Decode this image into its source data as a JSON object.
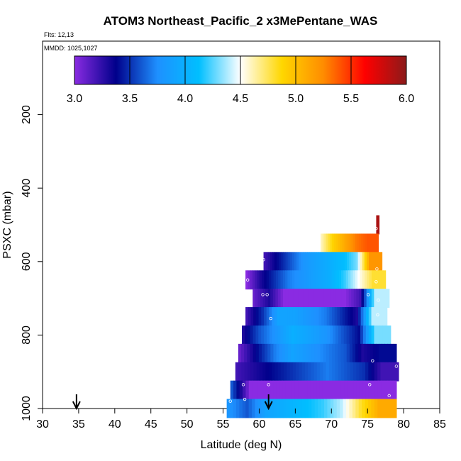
{
  "chart_data": {
    "type": "heatmap",
    "title": "ATOM3 Northeast_Pacific_2 x3MePentane_WAS",
    "flights_label": "Flts: 12,13",
    "mmdd_label": "MMDD: 1025,1027",
    "xlabel": "Latitude (deg N)",
    "ylabel": "PSXC (mbar)",
    "xlim": [
      30,
      85
    ],
    "ylim": [
      1000,
      0
    ],
    "xticks": [
      "30",
      "35",
      "40",
      "45",
      "50",
      "55",
      "60",
      "65",
      "70",
      "75",
      "80",
      "85"
    ],
    "yticks": [
      "200",
      "400",
      "600",
      "800",
      "1000"
    ],
    "colorbar": {
      "range": [
        3.0,
        6.0
      ],
      "ticks": [
        "3.0",
        "3.5",
        "4.0",
        "4.5",
        "5.0",
        "5.5",
        "6.0"
      ],
      "colors": [
        "#8a2be2",
        "#00008b",
        "#1e90ff",
        "#00bfff",
        "#ffffff",
        "#ffd700",
        "#ff8c00",
        "#ff0000",
        "#8b1a1a"
      ]
    },
    "bands": [
      {
        "p": 500,
        "lat_start": 76.2,
        "lat_end": 76.6,
        "values": [
          5.9
        ]
      },
      {
        "p": 550,
        "lat_start": 68.5,
        "lat_end": 76.5,
        "values": [
          4.6,
          4.9,
          5.1,
          5.3,
          5.4
        ]
      },
      {
        "p": 600,
        "lat_start": 60.6,
        "lat_end": 77.0,
        "values": [
          3.2,
          3.4,
          3.6,
          3.8,
          3.9,
          4.0,
          4.1,
          4.3,
          5.2
        ]
      },
      {
        "p": 650,
        "lat_start": 58.1,
        "lat_end": 77.5,
        "values": [
          3.0,
          3.3,
          3.5,
          3.7,
          3.8,
          3.9,
          4.0,
          4.2,
          4.5,
          4.8
        ]
      },
      {
        "p": 700,
        "lat_start": 59.1,
        "lat_end": 78.0,
        "values": [
          3.1,
          3.3,
          3.0,
          3.0,
          3.0,
          3.0,
          3.0,
          3.2,
          4.4
        ]
      },
      {
        "p": 750,
        "lat_start": 58.1,
        "lat_end": 77.7,
        "values": [
          3.2,
          3.5,
          3.9,
          3.9,
          3.8,
          3.7,
          3.5,
          3.3,
          4.4
        ]
      },
      {
        "p": 800,
        "lat_start": 57.6,
        "lat_end": 78.2,
        "values": [
          3.3,
          3.6,
          3.8,
          4.0,
          3.9,
          3.8,
          3.6,
          3.4,
          4.3
        ]
      },
      {
        "p": 850,
        "lat_start": 57.1,
        "lat_end": 79.0,
        "values": [
          3.1,
          3.4,
          3.7,
          3.9,
          3.8,
          3.7,
          3.6,
          3.3,
          3.4
        ]
      },
      {
        "p": 900,
        "lat_start": 56.7,
        "lat_end": 79.3,
        "values": [
          3.2,
          3.3,
          3.4,
          3.5,
          3.6,
          3.7,
          3.6,
          3.5,
          3.2
        ]
      },
      {
        "p": 950,
        "lat_start": 56.0,
        "lat_end": 79.0,
        "values": [
          3.6,
          3.0,
          3.0,
          3.0,
          3.0,
          3.0,
          3.0,
          3.0,
          3.0
        ]
      },
      {
        "p": 1000,
        "lat_start": 55.5,
        "lat_end": 79.0,
        "values": [
          3.8,
          3.6,
          3.9,
          4.0,
          4.1,
          4.2,
          4.4,
          4.8,
          5.1
        ]
      }
    ],
    "markers": [
      {
        "lat": 76.2,
        "p": 510
      },
      {
        "lat": 60.6,
        "p": 595
      },
      {
        "lat": 76.3,
        "p": 620
      },
      {
        "lat": 58.4,
        "p": 650
      },
      {
        "lat": 76.2,
        "p": 655
      },
      {
        "lat": 60.5,
        "p": 690
      },
      {
        "lat": 61.1,
        "p": 690
      },
      {
        "lat": 75.1,
        "p": 690
      },
      {
        "lat": 76.5,
        "p": 705
      },
      {
        "lat": 61.6,
        "p": 755
      },
      {
        "lat": 76.4,
        "p": 745
      },
      {
        "lat": 75.7,
        "p": 870
      },
      {
        "lat": 79.0,
        "p": 885
      },
      {
        "lat": 57.8,
        "p": 935
      },
      {
        "lat": 61.3,
        "p": 935
      },
      {
        "lat": 75.3,
        "p": 935
      },
      {
        "lat": 78.0,
        "p": 965
      },
      {
        "lat": 56.0,
        "p": 980
      },
      {
        "lat": 58.0,
        "p": 975
      }
    ],
    "arrows": [
      {
        "lat": 34.7
      },
      {
        "lat": 61.3
      }
    ],
    "grid": false,
    "legend": "top"
  }
}
